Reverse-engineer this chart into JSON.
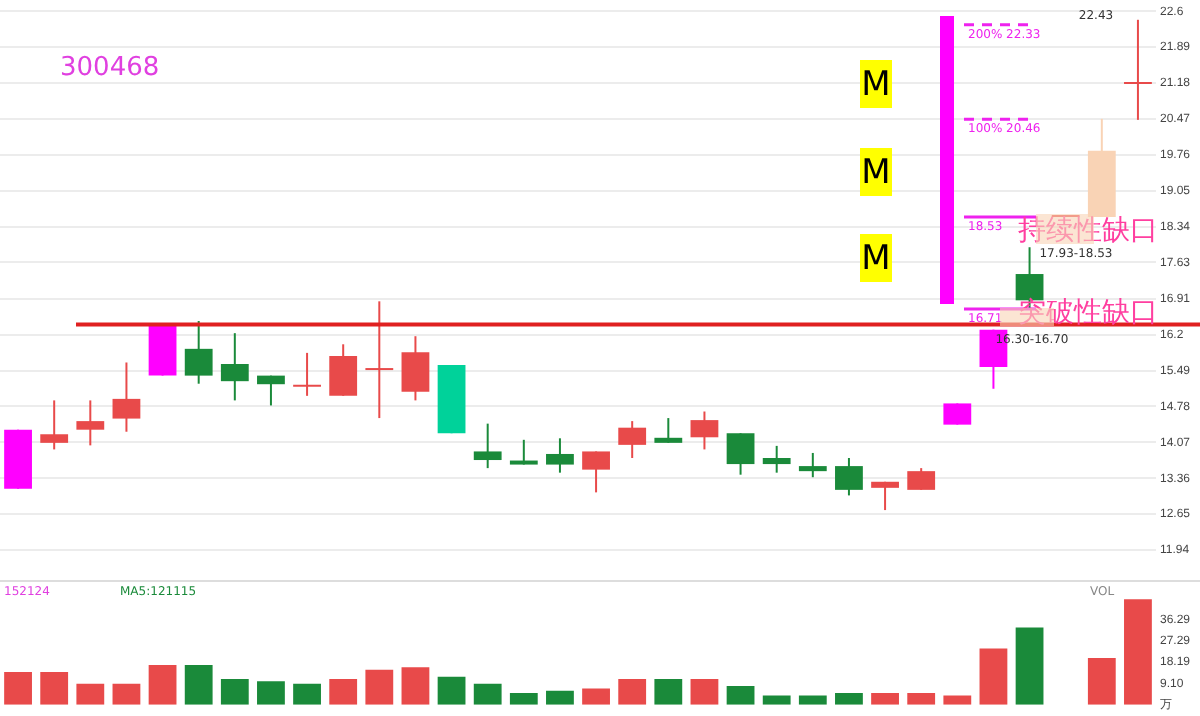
{
  "chart_data": [
    {
      "type": "candlestick",
      "title": "300468",
      "categories": [
        null,
        null,
        null,
        null,
        null,
        null,
        null,
        null,
        null,
        null,
        null,
        null,
        null,
        null,
        null,
        null,
        null,
        null,
        null,
        null,
        null,
        null,
        null,
        null,
        null,
        null,
        null,
        null,
        null,
        null,
        null,
        null
      ],
      "ohlc": [
        [
          13.15,
          14.32,
          13.15,
          14.32
        ],
        [
          14.06,
          14.9,
          13.93,
          14.23
        ],
        [
          14.32,
          14.9,
          14.01,
          14.49
        ],
        [
          14.54,
          15.65,
          14.28,
          14.93
        ],
        [
          15.39,
          16.38,
          15.39,
          16.38
        ],
        [
          15.92,
          16.47,
          15.23,
          15.39
        ],
        [
          15.62,
          16.23,
          14.9,
          15.28
        ],
        [
          15.39,
          15.39,
          14.8,
          15.22
        ],
        [
          15.17,
          15.84,
          14.99,
          15.19
        ],
        [
          14.99,
          16.01,
          14.99,
          15.78
        ],
        [
          15.5,
          16.86,
          14.55,
          15.52
        ],
        [
          15.07,
          16.17,
          14.9,
          15.85
        ],
        [
          15.6,
          15.6,
          14.25,
          14.25
        ],
        [
          13.89,
          14.44,
          13.56,
          13.72
        ],
        [
          13.71,
          14.12,
          13.63,
          13.63
        ],
        [
          13.84,
          14.15,
          13.47,
          13.63
        ],
        [
          13.53,
          13.89,
          13.08,
          13.89
        ],
        [
          14.02,
          14.49,
          13.76,
          14.36
        ],
        [
          14.16,
          14.55,
          14.06,
          14.06
        ],
        [
          14.17,
          14.68,
          13.93,
          14.51
        ],
        [
          14.25,
          14.25,
          13.43,
          13.64
        ],
        [
          13.76,
          14.0,
          13.47,
          13.64
        ],
        [
          13.6,
          13.86,
          13.38,
          13.5
        ],
        [
          13.6,
          13.76,
          13.02,
          13.13
        ],
        [
          13.17,
          13.29,
          12.73,
          13.29
        ],
        [
          13.13,
          13.56,
          13.13,
          13.5
        ],
        [
          14.42,
          14.84,
          14.42,
          14.84
        ],
        [
          15.56,
          16.3,
          15.13,
          16.3
        ],
        [
          17.4,
          17.93,
          16.7,
          16.88
        ],
        [
          18.53,
          18.53,
          18.53,
          18.53
        ],
        [
          18.53,
          20.47,
          18.53,
          19.84
        ],
        [
          21.18,
          22.43,
          20.45,
          21.16
        ]
      ],
      "colors": [
        "#ff00ff",
        "#e84a4a",
        "#e84a4a",
        "#e84a4a",
        "#ff00ff",
        "#1a8a3a",
        "#1a8a3a",
        "#1a8a3a",
        "#e84a4a",
        "#e84a4a",
        "#e84a4a",
        "#e84a4a",
        "#00d29a",
        "#1a8a3a",
        "#1a8a3a",
        "#1a8a3a",
        "#e84a4a",
        "#e84a4a",
        "#1a8a3a",
        "#e84a4a",
        "#1a8a3a",
        "#1a8a3a",
        "#1a8a3a",
        "#1a8a3a",
        "#e84a4a",
        "#e84a4a",
        "#ff00ff",
        "#ff00ff",
        "#1a8a3a",
        "#e84a4a",
        "#f9d3b5",
        "#e84a4a"
      ],
      "ylim": [
        11.94,
        22.6
      ],
      "yticks": [
        11.94,
        12.65,
        13.36,
        14.07,
        14.78,
        15.49,
        16.2,
        16.91,
        17.63,
        18.34,
        19.05,
        19.76,
        20.47,
        21.18,
        21.89,
        22.6
      ],
      "grid": "y",
      "tick_labels": "y",
      "ref_lines": [
        {
          "axis": "y",
          "value": 16.4,
          "color": "#e02020",
          "line_style": "solid"
        },
        {
          "axis": "y",
          "value": 16.71,
          "label": "16.71",
          "color": "#ee22ee",
          "line_style": "solid"
        },
        {
          "axis": "y",
          "value": 18.53,
          "label": "18.53",
          "color": "#ee22ee",
          "line_style": "solid"
        },
        {
          "axis": "y",
          "value": 20.46,
          "label": "100% 20.46",
          "color": "#ee22ee",
          "line_style": "dashed"
        },
        {
          "axis": "y",
          "value": 22.33,
          "label": "200% 22.33",
          "color": "#ee22ee",
          "line_style": "dashed"
        }
      ],
      "annotations": [
        "M",
        "M",
        "M",
        "持续性缺口",
        "突破性缺口",
        "17.93-18.53",
        "16.30-16.70",
        "22.43"
      ]
    },
    {
      "type": "bar",
      "categories": [
        null,
        null,
        null,
        null,
        null,
        null,
        null,
        null,
        null,
        null,
        null,
        null,
        null,
        null,
        null,
        null,
        null,
        null,
        null,
        null,
        null,
        null,
        null,
        null,
        null,
        null,
        null,
        null,
        null,
        null,
        null,
        null
      ],
      "values": [
        14,
        14,
        9,
        9,
        17,
        17,
        11,
        10,
        9,
        11,
        15,
        16,
        12,
        9,
        5,
        6,
        7,
        11,
        11,
        11,
        8,
        4,
        4,
        5,
        5,
        5,
        4,
        24,
        33,
        0,
        20,
        45
      ],
      "colors": [
        "#e84a4a",
        "#e84a4a",
        "#e84a4a",
        "#e84a4a",
        "#e84a4a",
        "#1a8a3a",
        "#1a8a3a",
        "#1a8a3a",
        "#1a8a3a",
        "#e84a4a",
        "#e84a4a",
        "#e84a4a",
        "#1a8a3a",
        "#1a8a3a",
        "#1a8a3a",
        "#1a8a3a",
        "#e84a4a",
        "#e84a4a",
        "#1a8a3a",
        "#e84a4a",
        "#1a8a3a",
        "#1a8a3a",
        "#1a8a3a",
        "#1a8a3a",
        "#e84a4a",
        "#e84a4a",
        "#e84a4a",
        "#e84a4a",
        "#1a8a3a",
        "#e84a4a",
        "#e84a4a",
        "#e84a4a"
      ],
      "ylim": [
        0,
        47.6
      ],
      "yticks": [
        {
          "value": 0,
          "label": "万"
        },
        {
          "value": 9.1,
          "label": "9.10"
        },
        18.19,
        27.29,
        36.29
      ],
      "tick_labels": "y",
      "grid": false,
      "annotations": [
        "152124",
        "MA5:121115",
        "VOL"
      ]
    }
  ]
}
